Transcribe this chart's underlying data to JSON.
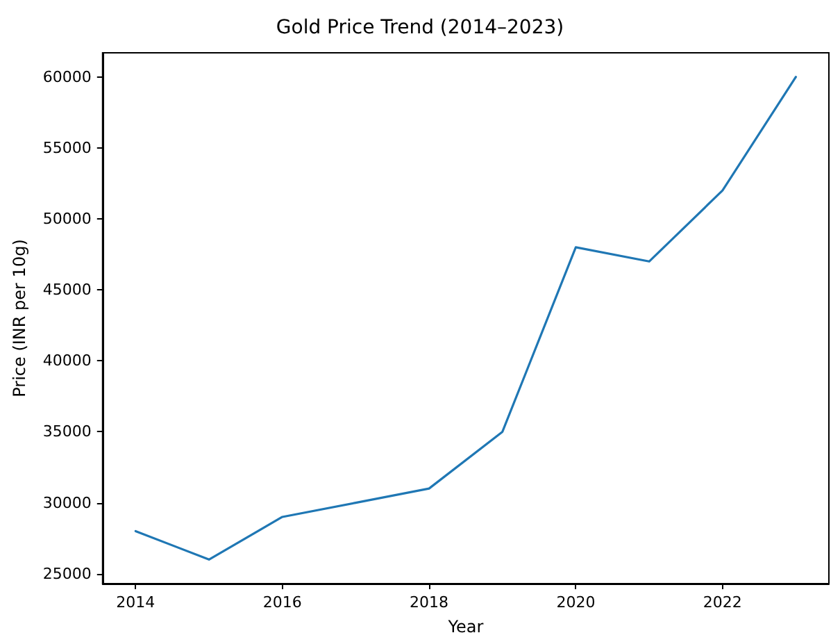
{
  "chart_data": {
    "type": "line",
    "title": "Gold Price Trend (2014–2023)",
    "xlabel": "Year",
    "ylabel": "Price (INR per 10g)",
    "x": [
      2014,
      2015,
      2016,
      2017,
      2018,
      2019,
      2020,
      2021,
      2022,
      2023
    ],
    "series": [
      {
        "color": "#1f77b4",
        "values": [
          28000,
          26000,
          29000,
          30000,
          31000,
          35000,
          48000,
          47000,
          52000,
          60000
        ]
      }
    ],
    "xlim": [
      2013.55,
      2023.45
    ],
    "xticks": [
      2014,
      2016,
      2018,
      2020,
      2022
    ],
    "ylim": [
      24300,
      61700
    ],
    "yticks": [
      25000,
      30000,
      35000,
      40000,
      45000,
      50000,
      55000,
      60000
    ],
    "grid": false,
    "marker": "none",
    "line_style": "solid"
  }
}
